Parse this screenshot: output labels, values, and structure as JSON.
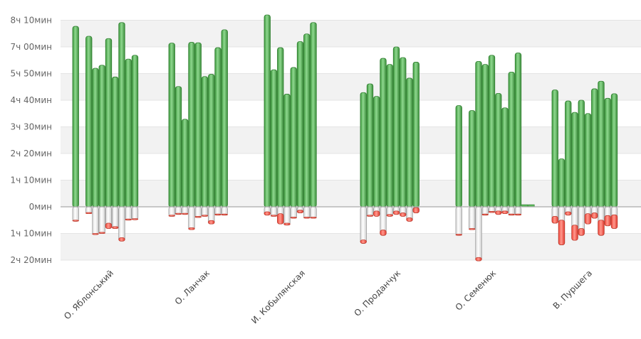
{
  "chart_data": {
    "type": "bar",
    "title": "",
    "xlabel": "",
    "ylabel": "",
    "grid": true,
    "legend": "none",
    "y_unit": "minutes",
    "ylim": [
      -150,
      500
    ],
    "yticks": [
      {
        "value": 490,
        "label": "8ч 10мин"
      },
      {
        "value": 420,
        "label": "7ч 00мин"
      },
      {
        "value": 350,
        "label": "5ч 50мин"
      },
      {
        "value": 280,
        "label": "4ч 40мин"
      },
      {
        "value": 210,
        "label": "3ч 30мин"
      },
      {
        "value": 140,
        "label": "2ч 20мин"
      },
      {
        "value": 70,
        "label": "1ч 10мин"
      },
      {
        "value": 0,
        "label": "0мин"
      },
      {
        "value": -70,
        "label": "1ч 10мин"
      },
      {
        "value": -140,
        "label": "2ч 20мин"
      }
    ],
    "colors": {
      "positive": "#5cb85c",
      "positive_dark": "#2e7d2e",
      "negative": "#ff6a5a",
      "negative_dark": "#c0392b",
      "neutral": "#f4f4f4",
      "neutral_dark": "#999999",
      "grid_band": "#f2f2f2",
      "axis": "#bbbbbb",
      "zero_line": "#aaaaaa"
    },
    "categories": [
      "О. Яблонський",
      "О. Ланчак",
      "И. Кобылянская",
      "О. Проданчук",
      "О. Семенюк",
      "В. Пуршега"
    ],
    "groups": [
      {
        "name": "О. Яблонський",
        "bars": [
          {
            "pos": 474,
            "neg": 38,
            "red": 3
          },
          {
            "pos": 0,
            "neg": 0,
            "red": 0
          },
          {
            "pos": 448,
            "neg": 18,
            "red": 3
          },
          {
            "pos": 364,
            "neg": 73,
            "red": 3
          },
          {
            "pos": 372,
            "neg": 70,
            "red": 3
          },
          {
            "pos": 442,
            "neg": 57,
            "red": 14
          },
          {
            "pos": 341,
            "neg": 57,
            "red": 5
          },
          {
            "pos": 484,
            "neg": 90,
            "red": 9
          },
          {
            "pos": 388,
            "neg": 35,
            "red": 3
          },
          {
            "pos": 398,
            "neg": 34,
            "red": 3
          }
        ]
      },
      {
        "name": "О. Ланчак",
        "bars": [
          {
            "pos": 430,
            "neg": 25,
            "red": 3
          },
          {
            "pos": 316,
            "neg": 20,
            "red": 3
          },
          {
            "pos": 230,
            "neg": 20,
            "red": 3
          },
          {
            "pos": 432,
            "neg": 60,
            "red": 5
          },
          {
            "pos": 431,
            "neg": 28,
            "red": 3
          },
          {
            "pos": 342,
            "neg": 25,
            "red": 3
          },
          {
            "pos": 348,
            "neg": 45,
            "red": 9
          },
          {
            "pos": 418,
            "neg": 22,
            "red": 3
          },
          {
            "pos": 465,
            "neg": 22,
            "red": 3
          }
        ]
      },
      {
        "name": "И. Кобылянская",
        "bars": [
          {
            "pos": 504,
            "neg": 22,
            "red": 9
          },
          {
            "pos": 360,
            "neg": 25,
            "red": 3
          },
          {
            "pos": 418,
            "neg": 45,
            "red": 27
          },
          {
            "pos": 296,
            "neg": 48,
            "red": 5
          },
          {
            "pos": 366,
            "neg": 30,
            "red": 3
          },
          {
            "pos": 434,
            "neg": 16,
            "red": 7
          },
          {
            "pos": 454,
            "neg": 30,
            "red": 3
          },
          {
            "pos": 484,
            "neg": 30,
            "red": 3
          }
        ]
      },
      {
        "name": "О. Проданчук",
        "bars": [
          {
            "pos": 300,
            "neg": 96,
            "red": 9
          },
          {
            "pos": 323,
            "neg": 25,
            "red": 3
          },
          {
            "pos": 290,
            "neg": 25,
            "red": 14
          },
          {
            "pos": 390,
            "neg": 75,
            "red": 14
          },
          {
            "pos": 374,
            "neg": 25,
            "red": 5
          },
          {
            "pos": 420,
            "neg": 20,
            "red": 9
          },
          {
            "pos": 392,
            "neg": 25,
            "red": 9
          },
          {
            "pos": 338,
            "neg": 38,
            "red": 9
          },
          {
            "pos": 380,
            "neg": 16,
            "red": 14
          }
        ]
      },
      {
        "name": "О. Семенюк",
        "bars": [
          {
            "pos": 266,
            "neg": 75,
            "red": 3
          },
          {
            "pos": 0,
            "neg": 0,
            "red": 0
          },
          {
            "pos": 253,
            "neg": 60,
            "red": 3
          },
          {
            "pos": 382,
            "neg": 142,
            "red": 9
          },
          {
            "pos": 374,
            "neg": 22,
            "red": 3
          },
          {
            "pos": 398,
            "neg": 15,
            "red": 3
          },
          {
            "pos": 298,
            "neg": 20,
            "red": 9
          },
          {
            "pos": 260,
            "neg": 18,
            "red": 7
          },
          {
            "pos": 354,
            "neg": 22,
            "red": 3
          },
          {
            "pos": 404,
            "neg": 22,
            "red": 3
          },
          {
            "pos": 4,
            "neg": 0,
            "red": 0
          },
          {
            "pos": 2,
            "neg": 0,
            "red": 0
          }
        ]
      },
      {
        "name": "В. Пуршега",
        "bars": [
          {
            "pos": 307,
            "neg": 43,
            "red": 18
          },
          {
            "pos": 126,
            "neg": 100,
            "red": 65
          },
          {
            "pos": 278,
            "neg": 22,
            "red": 9
          },
          {
            "pos": 248,
            "neg": 88,
            "red": 40
          },
          {
            "pos": 280,
            "neg": 75,
            "red": 18
          },
          {
            "pos": 245,
            "neg": 45,
            "red": 27
          },
          {
            "pos": 310,
            "neg": 30,
            "red": 14
          },
          {
            "pos": 330,
            "neg": 75,
            "red": 40
          },
          {
            "pos": 285,
            "neg": 50,
            "red": 27
          },
          {
            "pos": 297,
            "neg": 57,
            "red": 36
          }
        ]
      }
    ]
  }
}
